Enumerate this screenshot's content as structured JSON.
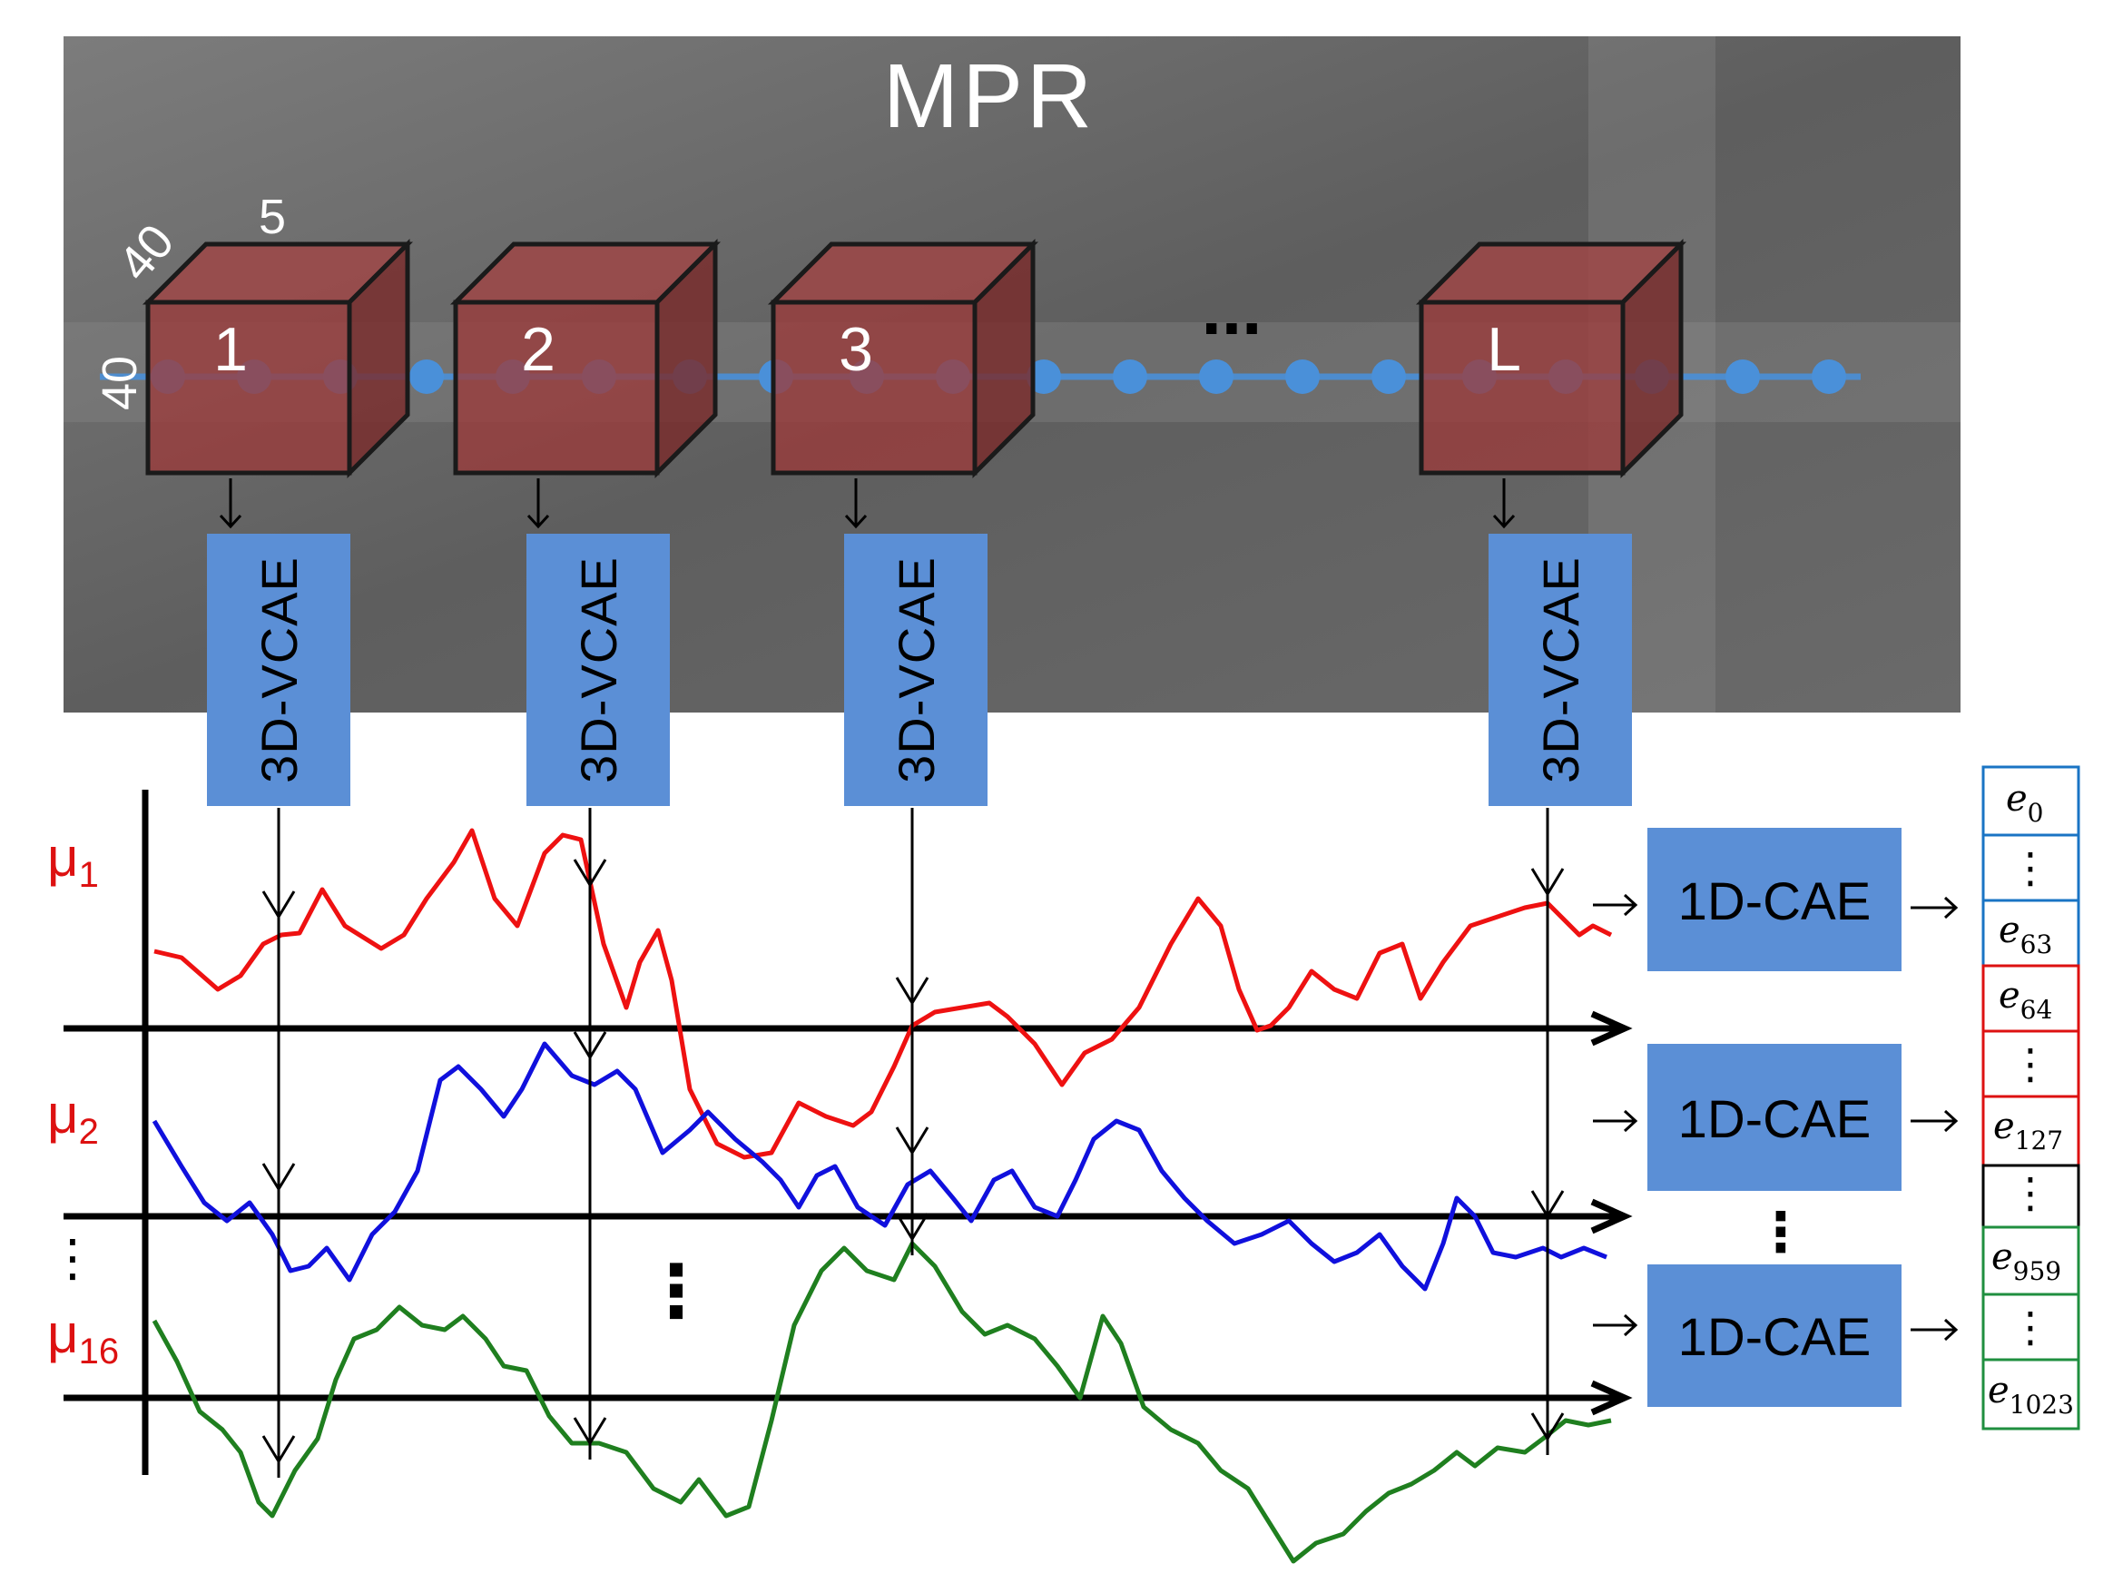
{
  "mpr_panel": {
    "title": "MPR",
    "dim_labels": {
      "depth": "5",
      "width": "40",
      "height": "40"
    },
    "cubes": [
      {
        "label": "1"
      },
      {
        "label": "2"
      },
      {
        "label": "3"
      },
      {
        "label": "L"
      }
    ],
    "ellipsis": "...",
    "colors": {
      "cube_fill": "#9b3b3b",
      "centerline": "#4a90d9",
      "background": "#6e6e6e"
    }
  },
  "encoders_3d": {
    "label": "3D-VCAE",
    "count": 4,
    "color": "#5b8fd6"
  },
  "signals": {
    "labels": [
      {
        "name": "mu-1",
        "main": "μ",
        "sub": "1",
        "color": "#dd1111"
      },
      {
        "name": "mu-2",
        "main": "μ",
        "sub": "2",
        "color": "#1010dd"
      },
      {
        "name": "mu-16",
        "main": "μ",
        "sub": "16",
        "color": "#1f7f1f"
      }
    ],
    "ellipsis": "⋮"
  },
  "encoders_1d": {
    "label": "1D-CAE",
    "ellipsis": "⋮"
  },
  "embedding": {
    "ellipsis": "⋮",
    "groups": [
      {
        "color": "#1a74c4",
        "first": {
          "main": "e",
          "sub": "0"
        },
        "last": {
          "main": "e",
          "sub": "63"
        }
      },
      {
        "color": "#dd1111",
        "first": {
          "main": "e",
          "sub": "64"
        },
        "last": {
          "main": "e",
          "sub": "127"
        }
      },
      {
        "color": "#1f8f3f",
        "first": {
          "main": "e",
          "sub": "959"
        },
        "last": {
          "main": "e",
          "sub": "1023"
        }
      }
    ]
  }
}
